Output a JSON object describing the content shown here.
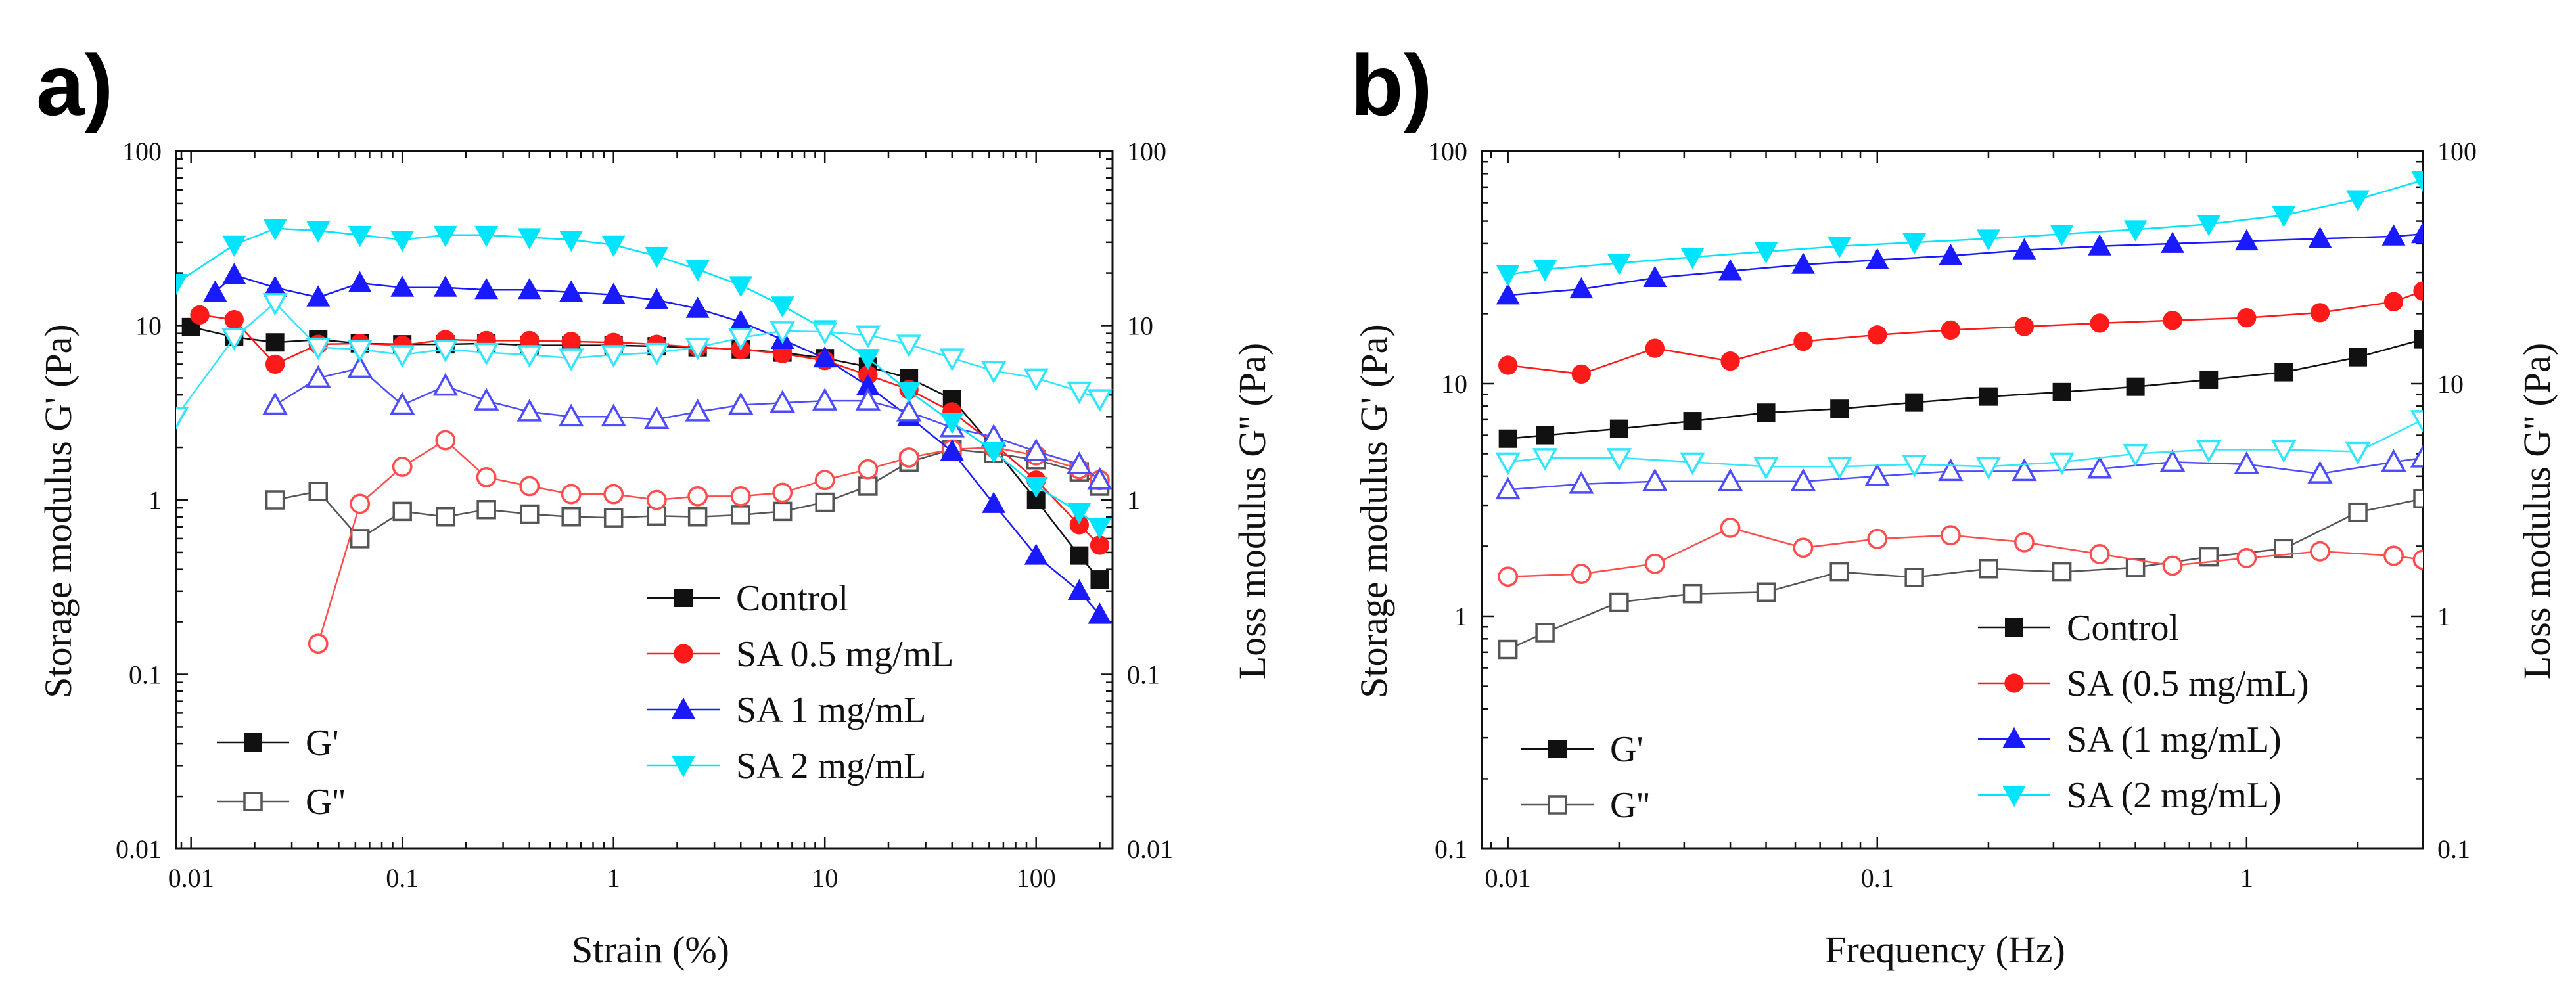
{
  "colors": {
    "control": "#111111",
    "sa05": "#ff1a1a",
    "sa1": "#1a1aff",
    "sa2": "#00e5ff",
    "axis": "#111111",
    "control_gpp": "#555555",
    "sa05_gpp": "#ff4d4d",
    "sa1_gpp": "#4d4dff",
    "sa2_gpp": "#33e6ff"
  },
  "chart_data": [
    {
      "panel_label": "a)",
      "type": "line",
      "xscale": "log",
      "yscale": "log",
      "xlabel": "Strain (%)",
      "ylabel_left": "Storage modulus G' (Pa)",
      "ylabel_right": "Loss modulus G'' (Pa)",
      "xlim": [
        0.0085,
        230
      ],
      "ylim": [
        0.01,
        100
      ],
      "xticks": [
        {
          "v": 0.01,
          "label": "0.01"
        },
        {
          "v": 0.1,
          "label": "0.1"
        },
        {
          "v": 1,
          "label": "1"
        },
        {
          "v": 10,
          "label": "10"
        },
        {
          "v": 100,
          "label": "100"
        }
      ],
      "yticks": [
        {
          "v": 0.01,
          "label": "0.01"
        },
        {
          "v": 0.1,
          "label": "0.1"
        },
        {
          "v": 1,
          "label": "1"
        },
        {
          "v": 10,
          "label": "10"
        },
        {
          "v": 100,
          "label": "100"
        }
      ],
      "legend_series": [
        {
          "key": "control",
          "label": "Control",
          "marker": "square"
        },
        {
          "key": "sa05",
          "label": "SA 0.5 mg/mL",
          "marker": "circle"
        },
        {
          "key": "sa1",
          "label": "SA 1 mg/mL",
          "marker": "triangle-up"
        },
        {
          "key": "sa2",
          "label": "SA 2 mg/mL",
          "marker": "triangle-down"
        }
      ],
      "legend_modulus": [
        {
          "label": "G'",
          "filled": true
        },
        {
          "label": "G''",
          "filled": false
        }
      ],
      "series": [
        {
          "key": "control",
          "name": "Control G'",
          "filled": true,
          "marker": "square",
          "x": [
            0.01,
            0.016,
            0.025,
            0.04,
            0.063,
            0.1,
            0.16,
            0.25,
            0.4,
            0.63,
            1,
            1.6,
            2.5,
            4,
            6.3,
            10,
            16,
            25,
            40,
            63,
            100,
            160,
            200
          ],
          "y": [
            9.8,
            8.6,
            8.0,
            8.3,
            7.9,
            7.8,
            7.8,
            7.9,
            7.7,
            7.7,
            7.7,
            7.6,
            7.5,
            7.3,
            7.0,
            6.5,
            5.8,
            5.0,
            3.8,
            2.0,
            1.0,
            0.48,
            0.35
          ]
        },
        {
          "key": "control",
          "name": "Control G''",
          "filled": false,
          "marker": "square",
          "x": [
            0.025,
            0.04,
            0.063,
            0.1,
            0.16,
            0.25,
            0.4,
            0.63,
            1,
            1.6,
            2.5,
            4,
            6.3,
            10,
            16,
            25,
            40,
            63,
            100,
            160,
            200
          ],
          "y": [
            1.0,
            1.12,
            0.6,
            0.86,
            0.8,
            0.88,
            0.83,
            0.8,
            0.79,
            0.81,
            0.8,
            0.82,
            0.86,
            0.97,
            1.2,
            1.65,
            1.95,
            1.85,
            1.7,
            1.45,
            1.2
          ]
        },
        {
          "key": "sa05",
          "name": "SA 0.5 mg/mL G'",
          "filled": true,
          "marker": "circle",
          "x": [
            0.011,
            0.016,
            0.025,
            0.04,
            0.063,
            0.1,
            0.16,
            0.25,
            0.4,
            0.63,
            1,
            1.6,
            2.5,
            4,
            6.3,
            10,
            16,
            25,
            40,
            63,
            100,
            160,
            200
          ],
          "y": [
            11.5,
            10.8,
            6.0,
            7.8,
            7.9,
            7.7,
            8.3,
            8.2,
            8.2,
            8.1,
            8.0,
            7.8,
            7.5,
            7.3,
            6.9,
            6.3,
            5.2,
            4.3,
            3.2,
            2.1,
            1.3,
            0.72,
            0.55
          ]
        },
        {
          "key": "sa05",
          "name": "SA 0.5 mg/mL G''",
          "filled": false,
          "marker": "circle",
          "x": [
            0.04,
            0.063,
            0.1,
            0.16,
            0.25,
            0.4,
            0.63,
            1,
            1.6,
            2.5,
            4,
            6.3,
            10,
            16,
            25,
            40,
            63,
            100,
            160,
            200
          ],
          "y": [
            0.15,
            0.95,
            1.55,
            2.2,
            1.35,
            1.2,
            1.08,
            1.08,
            1.0,
            1.05,
            1.05,
            1.1,
            1.3,
            1.5,
            1.75,
            1.95,
            2.0,
            1.8,
            1.5,
            1.3
          ]
        },
        {
          "key": "sa1",
          "name": "SA 1 mg/mL G'",
          "filled": true,
          "marker": "triangle-up",
          "x": [
            0.013,
            0.016,
            0.025,
            0.04,
            0.063,
            0.1,
            0.16,
            0.25,
            0.4,
            0.63,
            1,
            1.6,
            2.5,
            4,
            6.3,
            10,
            16,
            25,
            40,
            63,
            100,
            160,
            200
          ],
          "y": [
            15.5,
            19.5,
            16.5,
            14.5,
            17.5,
            16.5,
            16.5,
            16.0,
            16.0,
            15.5,
            15.0,
            14.0,
            12.5,
            10.5,
            8.3,
            6.5,
            4.5,
            3.0,
            1.9,
            0.95,
            0.48,
            0.3,
            0.22
          ]
        },
        {
          "key": "sa1",
          "name": "SA 1 mg/mL G''",
          "filled": false,
          "marker": "triangle-up",
          "x": [
            0.025,
            0.04,
            0.063,
            0.1,
            0.16,
            0.25,
            0.4,
            0.63,
            1,
            1.6,
            2.5,
            4,
            6.3,
            10,
            16,
            25,
            40,
            63,
            100,
            160,
            200
          ],
          "y": [
            3.5,
            5.0,
            5.7,
            3.5,
            4.5,
            3.7,
            3.2,
            3.0,
            3.0,
            2.9,
            3.2,
            3.5,
            3.6,
            3.7,
            3.7,
            3.2,
            2.6,
            2.3,
            1.9,
            1.6,
            1.3
          ]
        },
        {
          "key": "sa2",
          "name": "SA 2 mg/mL G'",
          "filled": true,
          "marker": "triangle-down",
          "x": [
            0.0085,
            0.016,
            0.025,
            0.04,
            0.063,
            0.1,
            0.16,
            0.25,
            0.4,
            0.63,
            1,
            1.6,
            2.5,
            4,
            6.3,
            10,
            16,
            25,
            40,
            63,
            100,
            160,
            200
          ],
          "y": [
            17.5,
            29,
            36,
            35,
            33,
            31,
            33,
            33,
            32,
            31,
            29,
            25,
            21,
            17,
            13,
            9.5,
            6.5,
            4.2,
            2.8,
            1.9,
            1.2,
            0.85,
            0.7
          ]
        },
        {
          "key": "sa2",
          "name": "SA 2 mg/mL G''",
          "filled": false,
          "marker": "triangle-down",
          "x": [
            0.0085,
            0.016,
            0.025,
            0.04,
            0.063,
            0.1,
            0.16,
            0.25,
            0.4,
            0.63,
            1,
            1.6,
            2.5,
            4,
            6.3,
            10,
            16,
            25,
            40,
            63,
            100,
            160,
            200
          ],
          "y": [
            3.0,
            8.5,
            13.5,
            7.5,
            7.3,
            6.8,
            7.3,
            7.0,
            6.8,
            6.5,
            6.8,
            7.0,
            7.5,
            8.5,
            9.3,
            9.2,
            8.8,
            7.8,
            6.5,
            5.5,
            5.0,
            4.2,
            3.8
          ]
        }
      ]
    },
    {
      "panel_label": "b)",
      "type": "line",
      "xscale": "log",
      "yscale": "log",
      "xlabel": "Frequency (Hz)",
      "ylabel_left": "Storage modulus G' (Pa)",
      "ylabel_right": "Loss modulus G'' (Pa)",
      "xlim": [
        0.0085,
        3.0
      ],
      "ylim": [
        0.1,
        100
      ],
      "xticks": [
        {
          "v": 0.01,
          "label": "0.01"
        },
        {
          "v": 0.1,
          "label": "0.1"
        },
        {
          "v": 1,
          "label": "1"
        }
      ],
      "yticks": [
        {
          "v": 0.1,
          "label": "0.1"
        },
        {
          "v": 1,
          "label": "1"
        },
        {
          "v": 10,
          "label": "10"
        },
        {
          "v": 100,
          "label": "100"
        }
      ],
      "legend_series": [
        {
          "key": "control",
          "label": "Control",
          "marker": "square"
        },
        {
          "key": "sa05",
          "label": "SA (0.5 mg/mL)",
          "marker": "circle"
        },
        {
          "key": "sa1",
          "label": "SA (1 mg/mL)",
          "marker": "triangle-up"
        },
        {
          "key": "sa2",
          "label": "SA (2 mg/mL)",
          "marker": "triangle-down"
        }
      ],
      "legend_modulus": [
        {
          "label": "G'",
          "filled": true
        },
        {
          "label": "G''",
          "filled": false
        }
      ],
      "series": [
        {
          "key": "control",
          "name": "Control G'",
          "filled": true,
          "marker": "square",
          "x": [
            0.01,
            0.0126,
            0.02,
            0.0316,
            0.05,
            0.079,
            0.126,
            0.2,
            0.316,
            0.5,
            0.79,
            1.26,
            2.0,
            3.0
          ],
          "y": [
            5.8,
            6.0,
            6.4,
            6.9,
            7.5,
            7.8,
            8.3,
            8.8,
            9.2,
            9.7,
            10.4,
            11.2,
            13.0,
            15.5
          ]
        },
        {
          "key": "control",
          "name": "Control G''",
          "filled": false,
          "marker": "square",
          "x": [
            0.01,
            0.0126,
            0.02,
            0.0316,
            0.05,
            0.079,
            0.126,
            0.2,
            0.316,
            0.5,
            0.79,
            1.26,
            2.0,
            3.0
          ],
          "y": [
            0.72,
            0.85,
            1.15,
            1.25,
            1.27,
            1.55,
            1.47,
            1.6,
            1.55,
            1.62,
            1.8,
            1.95,
            2.8,
            3.2
          ]
        },
        {
          "key": "sa05",
          "name": "SA (0.5 mg/mL) G'",
          "filled": true,
          "marker": "circle",
          "x": [
            0.01,
            0.0158,
            0.025,
            0.04,
            0.063,
            0.1,
            0.158,
            0.25,
            0.4,
            0.63,
            1.0,
            1.58,
            2.5,
            3.0
          ],
          "y": [
            12.0,
            11.0,
            14.2,
            12.5,
            15.2,
            16.2,
            17.0,
            17.6,
            18.2,
            18.7,
            19.2,
            20.2,
            22.5,
            25.0
          ]
        },
        {
          "key": "sa05",
          "name": "SA (0.5 mg/mL) G''",
          "filled": false,
          "marker": "circle",
          "x": [
            0.01,
            0.0158,
            0.025,
            0.04,
            0.063,
            0.1,
            0.158,
            0.25,
            0.4,
            0.63,
            1.0,
            1.58,
            2.5,
            3.0
          ],
          "y": [
            1.48,
            1.52,
            1.68,
            2.4,
            1.97,
            2.15,
            2.23,
            2.08,
            1.85,
            1.65,
            1.78,
            1.9,
            1.82,
            1.75
          ]
        },
        {
          "key": "sa1",
          "name": "SA (1 mg/mL) G'",
          "filled": true,
          "marker": "triangle-up",
          "x": [
            0.01,
            0.0158,
            0.025,
            0.04,
            0.063,
            0.1,
            0.158,
            0.25,
            0.4,
            0.63,
            1.0,
            1.58,
            2.5,
            3.0
          ],
          "y": [
            24.0,
            25.5,
            28.5,
            30.5,
            32.5,
            34.0,
            35.5,
            37.5,
            39.0,
            40.0,
            41.0,
            42.0,
            43.0,
            44.0
          ]
        },
        {
          "key": "sa1",
          "name": "SA (1 mg/mL) G''",
          "filled": false,
          "marker": "triangle-up",
          "x": [
            0.01,
            0.0158,
            0.025,
            0.04,
            0.063,
            0.1,
            0.158,
            0.25,
            0.4,
            0.63,
            1.0,
            1.58,
            2.5,
            3.0
          ],
          "y": [
            3.5,
            3.7,
            3.8,
            3.8,
            3.8,
            4.0,
            4.2,
            4.2,
            4.3,
            4.6,
            4.5,
            4.1,
            4.6,
            4.8
          ]
        },
        {
          "key": "sa2",
          "name": "SA (2 mg/mL) G'",
          "filled": true,
          "marker": "triangle-down",
          "x": [
            0.01,
            0.0126,
            0.02,
            0.0316,
            0.05,
            0.079,
            0.126,
            0.2,
            0.316,
            0.5,
            0.79,
            1.26,
            2.0,
            3.0
          ],
          "y": [
            29.5,
            31.0,
            33.0,
            35.0,
            37.0,
            39.0,
            40.5,
            42.0,
            44.0,
            46.0,
            48.5,
            53.0,
            62.0,
            75.0
          ]
        },
        {
          "key": "sa2",
          "name": "SA (2 mg/mL) G''",
          "filled": false,
          "marker": "triangle-down",
          "x": [
            0.01,
            0.0126,
            0.02,
            0.0316,
            0.05,
            0.079,
            0.126,
            0.2,
            0.316,
            0.5,
            0.79,
            1.26,
            2.0,
            3.0
          ],
          "y": [
            4.6,
            4.8,
            4.8,
            4.6,
            4.4,
            4.4,
            4.5,
            4.4,
            4.6,
            5.0,
            5.2,
            5.2,
            5.1,
            7.0
          ]
        }
      ]
    }
  ]
}
